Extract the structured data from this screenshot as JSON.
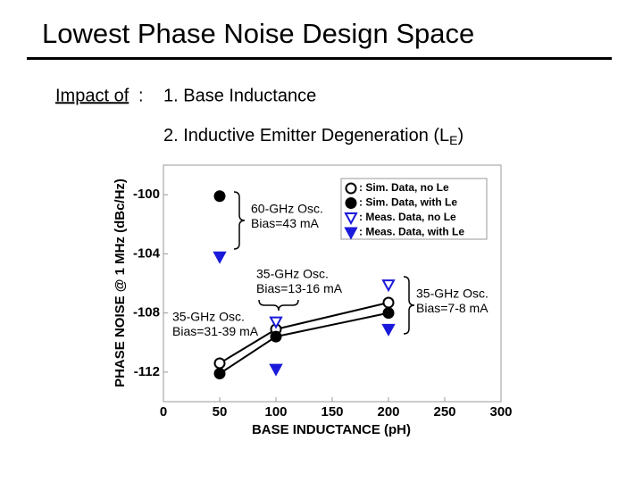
{
  "slide": {
    "title": "Lowest Phase Noise Design Space",
    "impact_label": "Impact of",
    "impact_colon": ":",
    "item1": "1. Base Inductance",
    "item2": "2. Inductive Emitter Degeneration (L",
    "item2_sub": "E",
    "item2_end": ")"
  },
  "chart_data": {
    "type": "scatter",
    "x_label": "BASE INDUCTANCE (pH)",
    "y_label": "PHASE NOISE @ 1 MHz (dBc/Hz)",
    "xlim": [
      0,
      300
    ],
    "xticks": [
      0,
      50,
      100,
      150,
      200,
      250,
      300
    ],
    "ylim": [
      -114,
      -98
    ],
    "yticks": [
      -100,
      -104,
      -108,
      -112
    ],
    "series": [
      {
        "name": ": Sim. Data, no Le",
        "marker": "circle",
        "filled": false,
        "line": true,
        "color": "#000000",
        "x": [
          50,
          100,
          200
        ],
        "values": [
          -111.4,
          -109.1,
          -107.3
        ]
      },
      {
        "name": ": Sim. Data, with Le",
        "marker": "circle",
        "filled": true,
        "line": true,
        "color": "#000000",
        "x": [
          50,
          50,
          50,
          100,
          200
        ],
        "values": [
          -100.1,
          null,
          -112.1,
          -109.6,
          -108.0
        ]
      },
      {
        "name": ": Meas. Data, no Le",
        "marker": "triangle",
        "filled": false,
        "line": false,
        "color": "#1a1adb",
        "x": [
          100,
          200
        ],
        "values": [
          -108.6,
          -106.1
        ]
      },
      {
        "name": ": Meas. Data, with Le",
        "marker": "triangle",
        "filled": true,
        "line": false,
        "color": "#1a1adb",
        "x": [
          50,
          100,
          200
        ],
        "values": [
          -104.2,
          -111.8,
          -109.1
        ]
      }
    ],
    "annotations": [
      {
        "lines": [
          "60-GHz Osc.",
          "Bias=43 mA"
        ]
      },
      {
        "lines": [
          "35-GHz Osc.",
          "Bias=13-16 mA"
        ]
      },
      {
        "lines": [
          "35-GHz Osc.",
          "Bias=31-39 mA"
        ]
      },
      {
        "lines": [
          "35-GHz Osc.",
          "Bias=7-8 mA"
        ]
      }
    ]
  }
}
